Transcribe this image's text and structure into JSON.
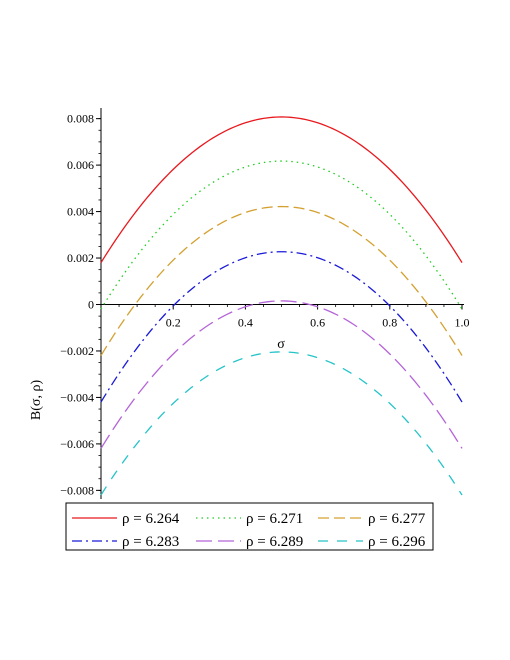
{
  "chart_data": {
    "type": "line",
    "title": "",
    "xlabel": "σ",
    "ylabel": "B(σ, ρ)",
    "xlim": [
      0,
      1
    ],
    "ylim": [
      -0.0082,
      0.0082
    ],
    "x_ticks": [
      0.2,
      0.4,
      0.6,
      0.8,
      1.0
    ],
    "x_tick_labels": [
      "0.2",
      "0.4",
      "0.6",
      "0.8",
      "1.0"
    ],
    "y_ticks": [
      0.008,
      0.006,
      0.004,
      0.002,
      0,
      -0.002,
      -0.004,
      -0.006,
      -0.008
    ],
    "y_tick_labels": [
      "0.008",
      "0.006",
      "0.004",
      "0.002",
      "0",
      "−0.002",
      "−0.004",
      "−0.006",
      "−0.008"
    ],
    "grid": false,
    "legend_position": "bottom",
    "x": [
      0,
      0.1,
      0.2,
      0.3,
      0.4,
      0.5,
      0.6,
      0.7,
      0.8,
      0.9,
      1.0
    ],
    "series": [
      {
        "name": "ρ = 6.264",
        "color": "#e8191e",
        "dash": "solid",
        "values": [
          0.0018,
          0.00406,
          0.00582,
          0.00707,
          0.00782,
          0.00807,
          0.00782,
          0.00707,
          0.00582,
          0.00406,
          0.0018
        ]
      },
      {
        "name": "ρ = 6.271",
        "color": "#22cc22",
        "dash": "dot",
        "values": [
          -0.0002,
          0.0021,
          0.00389,
          0.00516,
          0.00591,
          0.00617,
          0.00591,
          0.00516,
          0.00389,
          0.0021,
          -0.0002
        ]
      },
      {
        "name": "ρ = 6.277",
        "color": "#d4a030",
        "dash": "dash",
        "values": [
          -0.0022,
          0.00012,
          0.00191,
          0.00319,
          0.00396,
          0.00421,
          0.00396,
          0.00319,
          0.00191,
          0.00012,
          -0.0022
        ]
      },
      {
        "name": "ρ = 6.283",
        "color": "#1a1ad8",
        "dash": "dashdot",
        "values": [
          -0.0042,
          -0.00187,
          -6e-05,
          0.00124,
          0.00201,
          0.00227,
          0.00201,
          0.00124,
          -6e-05,
          -0.00187,
          -0.0042
        ]
      },
      {
        "name": "ρ = 6.289",
        "color": "#b464d8",
        "dash": "longdash",
        "values": [
          -0.0062,
          -0.0039,
          -0.00213,
          -0.00086,
          -0.0001,
          0.00015,
          -0.0001,
          -0.00086,
          -0.00213,
          -0.0039,
          -0.0062
        ]
      },
      {
        "name": "ρ = 6.296",
        "color": "#24c4c8",
        "dash": "spacedash",
        "values": [
          -0.0082,
          -0.00598,
          -0.00426,
          -0.00302,
          -0.00229,
          -0.00204,
          -0.00229,
          -0.00302,
          -0.00426,
          -0.00598,
          -0.0082
        ]
      }
    ]
  }
}
